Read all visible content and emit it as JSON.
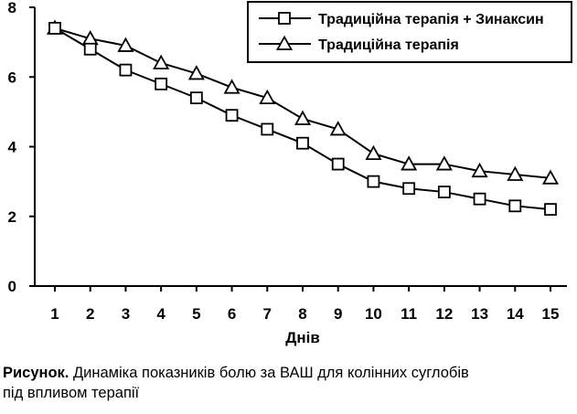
{
  "chart_data": {
    "type": "line",
    "title": "",
    "xlabel": "Днів",
    "ylabel": "",
    "x": [
      1,
      2,
      3,
      4,
      5,
      6,
      7,
      8,
      9,
      10,
      11,
      12,
      13,
      14,
      15
    ],
    "ylim": [
      0,
      8
    ],
    "yticks": [
      0,
      2,
      4,
      6,
      8
    ],
    "grid": false,
    "legend_position": "top-right",
    "series": [
      {
        "name": "Традиційна терапія + Зинаксин",
        "marker": "square",
        "values": [
          7.4,
          6.8,
          6.2,
          5.8,
          5.4,
          4.9,
          4.5,
          4.1,
          3.5,
          3.0,
          2.8,
          2.7,
          2.5,
          2.3,
          2.2
        ]
      },
      {
        "name": "Традиційна терапія",
        "marker": "triangle",
        "values": [
          7.4,
          7.1,
          6.9,
          6.4,
          6.1,
          5.7,
          5.4,
          4.8,
          4.5,
          3.8,
          3.5,
          3.5,
          3.3,
          3.2,
          3.1
        ]
      }
    ]
  },
  "caption": {
    "label": "Рисунок.",
    "line1": " Динаміка показників болю за ВАШ для колінних суглобів",
    "line2": "під впливом терапії"
  }
}
